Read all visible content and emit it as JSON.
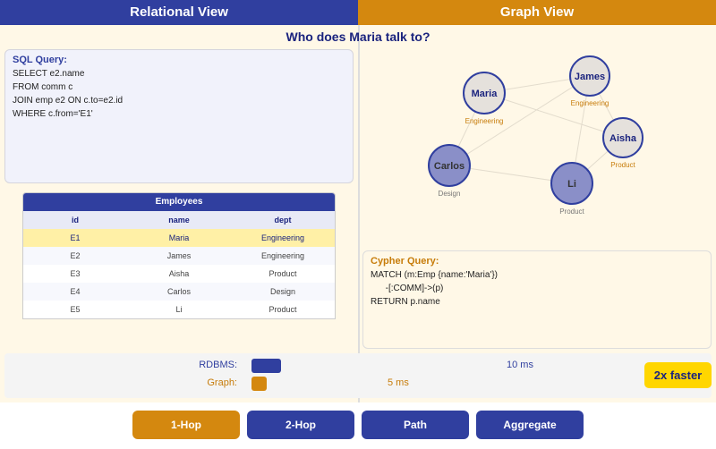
{
  "header": {
    "left": "Relational View",
    "right": "Graph View"
  },
  "question": "Who does Maria talk to?",
  "sql": {
    "title": "SQL Query:",
    "lines": [
      "SELECT e2.name",
      "FROM comm c",
      "JOIN emp e2 ON c.to=e2.id",
      "WHERE c.from='E1'"
    ]
  },
  "table": {
    "caption": "Employees",
    "columns": [
      "id",
      "name",
      "dept"
    ],
    "rows": [
      [
        "E1",
        "Maria",
        "Engineering"
      ],
      [
        "E2",
        "James",
        "Engineering"
      ],
      [
        "E3",
        "Aisha",
        "Product"
      ],
      [
        "E4",
        "Carlos",
        "Design"
      ],
      [
        "E5",
        "Li",
        "Product"
      ]
    ],
    "highlighted_row": 0
  },
  "graph": {
    "nodes": [
      {
        "id": "maria",
        "name": "Maria",
        "dept": "Engineering",
        "highlighted": false
      },
      {
        "id": "james",
        "name": "James",
        "dept": "Engineering",
        "highlighted": false
      },
      {
        "id": "aisha",
        "name": "Aisha",
        "dept": "Product",
        "highlighted": false
      },
      {
        "id": "carlos",
        "name": "Carlos",
        "dept": "Design",
        "highlighted": true
      },
      {
        "id": "li",
        "name": "Li",
        "dept": "Product",
        "highlighted": true
      }
    ],
    "edges": [
      [
        "maria",
        "james"
      ],
      [
        "maria",
        "aisha"
      ],
      [
        "maria",
        "carlos"
      ],
      [
        "james",
        "carlos"
      ],
      [
        "james",
        "aisha"
      ],
      [
        "james",
        "li"
      ],
      [
        "carlos",
        "li"
      ],
      [
        "aisha",
        "li"
      ]
    ]
  },
  "cypher": {
    "title": "Cypher Query:",
    "lines": [
      "MATCH (m:Emp {name:'Maria'})",
      "      -[:COMM]->(p)",
      "RETURN p.name"
    ]
  },
  "perf": {
    "rdbms_label": "RDBMS:",
    "rdbms_value": "10 ms",
    "rdbms_ms": 10,
    "graph_label": "Graph:",
    "graph_value": "5 ms",
    "graph_ms": 5,
    "badge": "2x faster"
  },
  "buttons": [
    {
      "label": "1-Hop",
      "active": true
    },
    {
      "label": "2-Hop",
      "active": false
    },
    {
      "label": "Path",
      "active": false
    },
    {
      "label": "Aggregate",
      "active": false
    }
  ],
  "colors": {
    "blue": "#303f9f",
    "orange": "#d4880f",
    "cream": "#fff8e7",
    "node_fill": "#e5e1dc",
    "node_highlight": "#8a8fc8"
  }
}
